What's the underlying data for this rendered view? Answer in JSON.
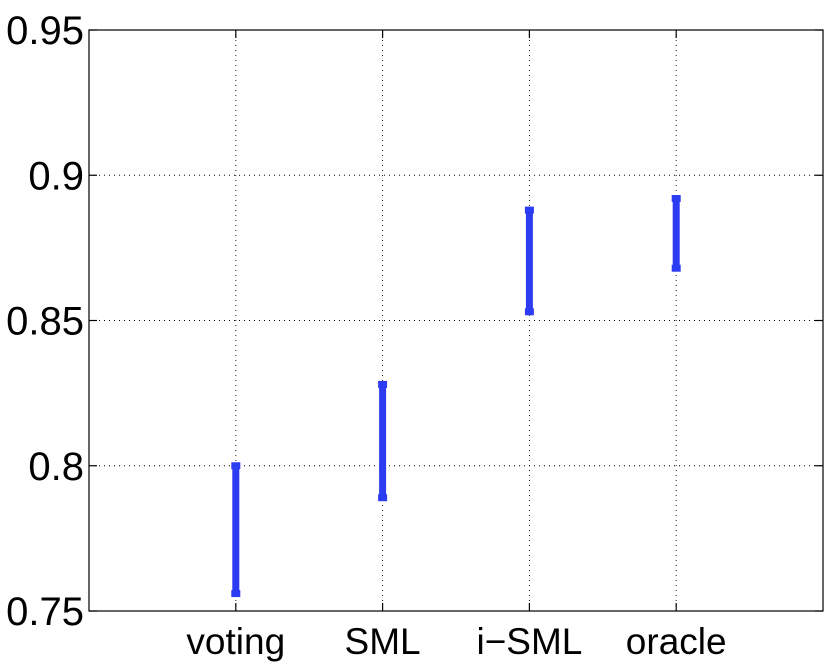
{
  "chart_data": {
    "type": "errorbar",
    "title": "",
    "xlabel": "",
    "ylabel": "",
    "categories": [
      "voting",
      "SML",
      "i−SML",
      "oracle"
    ],
    "ranges": [
      {
        "category": "voting",
        "low": 0.756,
        "high": 0.8
      },
      {
        "category": "SML",
        "low": 0.789,
        "high": 0.828
      },
      {
        "category": "i−SML",
        "low": 0.853,
        "high": 0.888
      },
      {
        "category": "oracle",
        "low": 0.868,
        "high": 0.892
      }
    ],
    "ylim": [
      0.75,
      0.95
    ],
    "yticks": [
      "0.75",
      "0.8",
      "0.85",
      "0.9",
      "0.95"
    ],
    "ytick_values": [
      0.75,
      0.8,
      0.85,
      0.9,
      0.95
    ],
    "grid": true,
    "bar_color": "#2b3cf2",
    "axis_color": "#000000"
  }
}
